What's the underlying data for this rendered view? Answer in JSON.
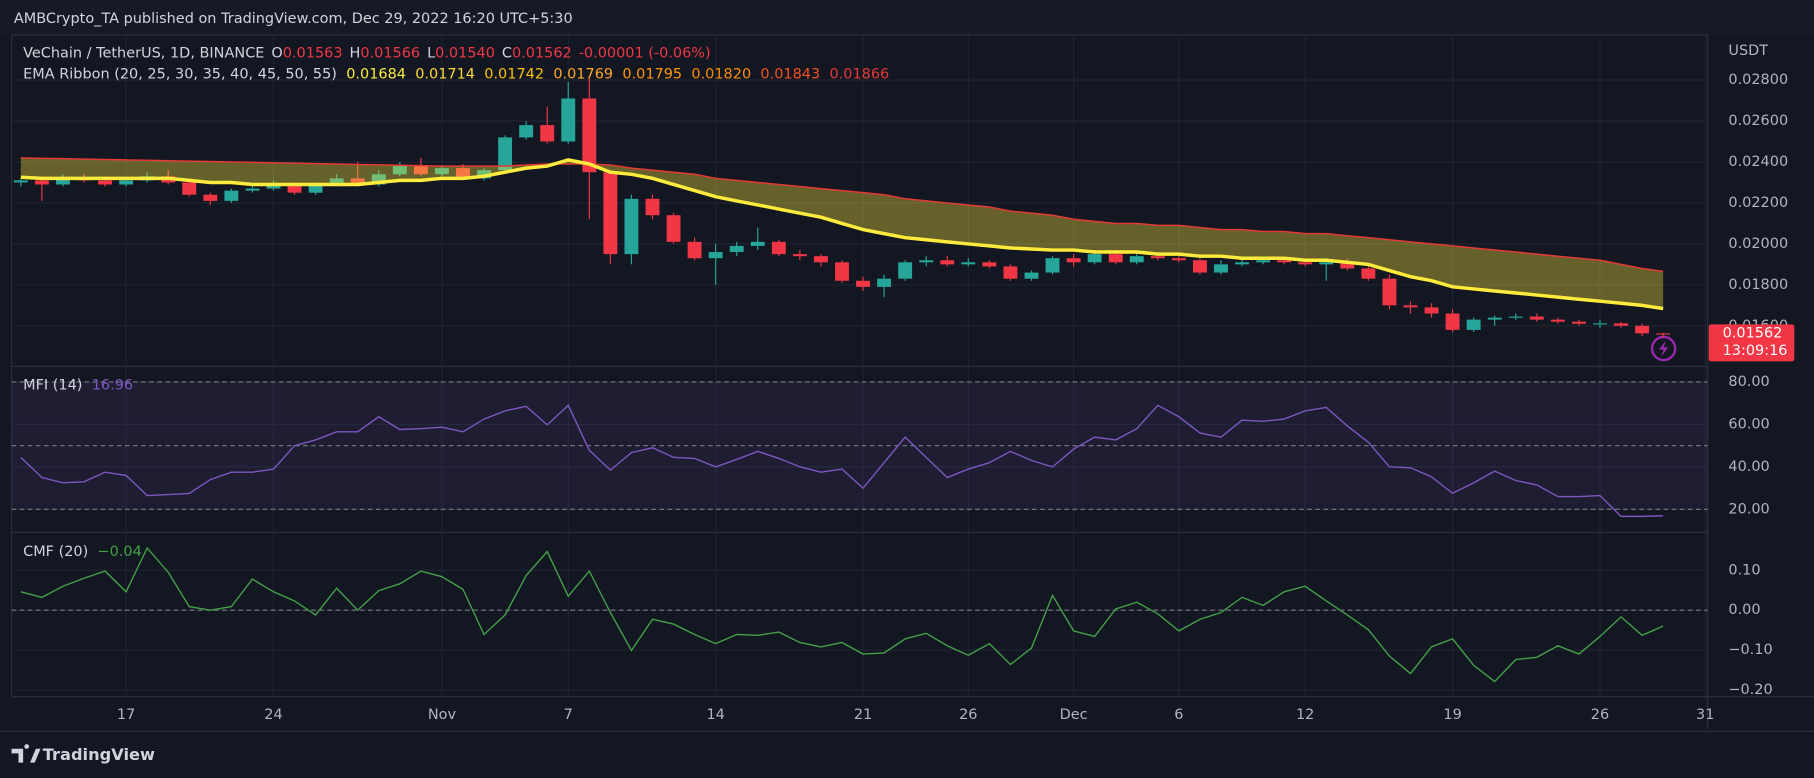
{
  "header": {
    "title": "AMBCrypto_TA published on TradingView.com, Dec 29, 2022 16:20 UTC+5:30"
  },
  "footer": {
    "brand": "TradingView"
  },
  "chart_data": [
    {
      "type": "candlestick",
      "ylabel": "USDT",
      "legend": {
        "title": "VeChain / TetherUS, 1D, BINANCE",
        "items": [
          {
            "key": "O",
            "value": "0.01563"
          },
          {
            "key": "H",
            "value": "0.01566"
          },
          {
            "key": "L",
            "value": "0.01540"
          },
          {
            "key": "C",
            "value": "0.01562"
          }
        ],
        "change": "-0.00001 (-0.06%)"
      },
      "last_price_label": "0.01562",
      "countdown": "13:09:16",
      "up_color": "#26a69a",
      "down_color": "#f23645",
      "grid": true,
      "categories": [
        null,
        null,
        null,
        null,
        null,
        "17",
        null,
        null,
        null,
        null,
        null,
        null,
        "24",
        null,
        null,
        null,
        null,
        null,
        null,
        null,
        "Nov",
        null,
        null,
        null,
        null,
        null,
        "7",
        null,
        null,
        null,
        null,
        null,
        null,
        "14",
        null,
        null,
        null,
        null,
        null,
        null,
        "21",
        null,
        null,
        null,
        null,
        "26",
        null,
        null,
        null,
        null,
        "Dec",
        null,
        null,
        null,
        null,
        "6",
        null,
        null,
        null,
        null,
        null,
        "12",
        null,
        null,
        null,
        null,
        null,
        null,
        "19",
        null,
        null,
        null,
        null,
        null,
        null,
        "26",
        null,
        null,
        null,
        null,
        "31"
      ],
      "open": [
        0.023,
        0.0231,
        0.0229,
        0.0232,
        0.0231,
        0.0229,
        0.0231,
        0.0233,
        0.023,
        0.0224,
        0.0221,
        0.0226,
        0.0227,
        0.0229,
        0.0225,
        0.0229,
        0.0232,
        0.0229,
        0.0234,
        0.0238,
        0.0234,
        0.0237,
        0.0232,
        0.0236,
        0.0252,
        0.0258,
        0.025,
        0.0271,
        0.0235,
        0.0195,
        0.0222,
        0.0214,
        0.0201,
        0.0193,
        0.0196,
        0.0199,
        0.0201,
        0.0195,
        0.0194,
        0.0191,
        0.0182,
        0.0179,
        0.0183,
        0.0191,
        0.0192,
        0.019,
        0.0191,
        0.0189,
        0.0183,
        0.0186,
        0.0193,
        0.0191,
        0.0195,
        0.0191,
        0.0194,
        0.0193,
        0.0192,
        0.0186,
        0.019,
        0.0191,
        0.0192,
        0.0191,
        0.019,
        0.0191,
        0.0188,
        0.0183,
        0.017,
        0.0169,
        0.0166,
        0.0158,
        0.0163,
        0.0164,
        0.01645,
        0.0163,
        0.0162,
        0.0161,
        0.01612,
        0.016,
        0.01563,
        null,
        null
      ],
      "high": [
        0.0232,
        0.0233,
        0.0234,
        0.0234,
        0.0232,
        0.0232,
        0.0235,
        0.0236,
        0.0231,
        0.0225,
        0.0227,
        0.0229,
        0.0231,
        0.023,
        0.023,
        0.0234,
        0.024,
        0.0236,
        0.024,
        0.0242,
        0.0238,
        0.0239,
        0.0237,
        0.0253,
        0.026,
        0.0267,
        0.0279,
        0.0282,
        0.0236,
        0.0224,
        0.0224,
        0.0215,
        0.0203,
        0.02,
        0.0201,
        0.0208,
        0.0202,
        0.0197,
        0.0195,
        0.0192,
        0.0184,
        0.0185,
        0.0192,
        0.0194,
        0.0194,
        0.0193,
        0.0192,
        0.019,
        0.0187,
        0.0194,
        0.0195,
        0.0197,
        0.0196,
        0.0196,
        0.0195,
        0.0194,
        0.0193,
        0.0192,
        0.0193,
        0.0193,
        0.0193,
        0.0192,
        0.0193,
        0.0193,
        0.0189,
        0.0185,
        0.0172,
        0.0171,
        0.0168,
        0.0164,
        0.0165,
        0.0166,
        0.0166,
        0.0164,
        0.0163,
        0.0163,
        0.0162,
        0.0161,
        0.01566,
        null,
        null
      ],
      "low": [
        0.0228,
        0.0221,
        0.0228,
        0.023,
        0.0228,
        0.0228,
        0.023,
        0.0229,
        0.0223,
        0.0219,
        0.022,
        0.0225,
        0.0226,
        0.0224,
        0.0224,
        0.0228,
        0.0228,
        0.0228,
        0.0233,
        0.0233,
        0.0233,
        0.0231,
        0.0231,
        0.0235,
        0.0251,
        0.0249,
        0.0249,
        0.0212,
        0.019,
        0.019,
        0.0212,
        0.02,
        0.0192,
        0.018,
        0.0194,
        0.0197,
        0.0194,
        0.0192,
        0.0189,
        0.0181,
        0.0177,
        0.0174,
        0.0182,
        0.0189,
        0.0189,
        0.0189,
        0.0188,
        0.0182,
        0.0182,
        0.0185,
        0.0189,
        0.019,
        0.019,
        0.019,
        0.0192,
        0.0191,
        0.0185,
        0.0185,
        0.0189,
        0.019,
        0.019,
        0.0189,
        0.0182,
        0.0187,
        0.0182,
        0.0168,
        0.0166,
        0.0164,
        0.0157,
        0.0157,
        0.016,
        0.0163,
        0.0162,
        0.0161,
        0.016,
        0.0159,
        0.0159,
        0.0155,
        0.0154,
        null,
        null
      ],
      "close": [
        0.0231,
        0.0229,
        0.0232,
        0.0231,
        0.0229,
        0.0231,
        0.0233,
        0.023,
        0.0224,
        0.0221,
        0.0226,
        0.0227,
        0.0229,
        0.0225,
        0.0229,
        0.0232,
        0.0229,
        0.0234,
        0.0238,
        0.0234,
        0.0237,
        0.0232,
        0.0236,
        0.0252,
        0.0258,
        0.025,
        0.0271,
        0.0235,
        0.0195,
        0.0222,
        0.0214,
        0.0201,
        0.0193,
        0.0196,
        0.0199,
        0.0201,
        0.0195,
        0.0194,
        0.0191,
        0.0182,
        0.0179,
        0.0183,
        0.0191,
        0.0192,
        0.019,
        0.0191,
        0.0189,
        0.0183,
        0.0186,
        0.0193,
        0.0191,
        0.0195,
        0.0191,
        0.0194,
        0.0193,
        0.0192,
        0.0186,
        0.019,
        0.0191,
        0.0192,
        0.0191,
        0.019,
        0.0191,
        0.0188,
        0.0183,
        0.017,
        0.0169,
        0.0166,
        0.0158,
        0.0163,
        0.0164,
        0.01645,
        0.0163,
        0.0162,
        0.0161,
        0.01612,
        0.016,
        0.01563,
        0.01562,
        null,
        null
      ],
      "ribbon": {
        "name": "EMA Ribbon (20, 25, 30, 35, 40, 45, 50, 55)",
        "last_values": [
          "0.01684",
          "0.01714",
          "0.01742",
          "0.01769",
          "0.01795",
          "0.01820",
          "0.01843",
          "0.01866"
        ],
        "colors": [
          "#ffeb3b",
          "#fdd835",
          "#ffc107",
          "#ffa726",
          "#ff9800",
          "#fb8c00",
          "#f4511e",
          "#e53935"
        ],
        "fast": [
          0.02325,
          0.0232,
          0.0232,
          0.0232,
          0.0232,
          0.0232,
          0.0232,
          0.0232,
          0.0231,
          0.023,
          0.023,
          0.0229,
          0.0229,
          0.0229,
          0.0229,
          0.0229,
          0.0229,
          0.023,
          0.0231,
          0.0231,
          0.0232,
          0.0232,
          0.0233,
          0.0235,
          0.0237,
          0.0238,
          0.0241,
          0.0239,
          0.0235,
          0.0234,
          0.0232,
          0.0229,
          0.0226,
          0.0223,
          0.0221,
          0.0219,
          0.0217,
          0.0215,
          0.0213,
          0.021,
          0.0207,
          0.0205,
          0.0203,
          0.0202,
          0.0201,
          0.02,
          0.0199,
          0.0198,
          0.01975,
          0.0197,
          0.0197,
          0.0196,
          0.0196,
          0.0196,
          0.0195,
          0.0195,
          0.0194,
          0.0194,
          0.0193,
          0.0193,
          0.0193,
          0.0192,
          0.0192,
          0.0191,
          0.019,
          0.0187,
          0.0184,
          0.0182,
          0.0179,
          0.0178,
          0.0177,
          0.0176,
          0.0175,
          0.0174,
          0.0173,
          0.0172,
          0.0171,
          0.017,
          0.01684,
          null,
          null
        ],
        "slow": [
          0.0242,
          0.02418,
          0.02416,
          0.02414,
          0.02412,
          0.0241,
          0.02408,
          0.02406,
          0.02404,
          0.02402,
          0.024,
          0.02398,
          0.02396,
          0.02394,
          0.02392,
          0.0239,
          0.02388,
          0.02386,
          0.02384,
          0.02382,
          0.0238,
          0.0238,
          0.0238,
          0.0238,
          0.02385,
          0.0239,
          0.0239,
          0.0239,
          0.02385,
          0.0237,
          0.0236,
          0.0235,
          0.0234,
          0.0232,
          0.0231,
          0.023,
          0.0229,
          0.0228,
          0.0227,
          0.0226,
          0.0225,
          0.0224,
          0.0222,
          0.0221,
          0.022,
          0.0219,
          0.0218,
          0.0216,
          0.0215,
          0.0214,
          0.0212,
          0.0211,
          0.021,
          0.021,
          0.0209,
          0.0209,
          0.0208,
          0.0207,
          0.0207,
          0.0206,
          0.0206,
          0.0205,
          0.0205,
          0.0204,
          0.0203,
          0.0202,
          0.0201,
          0.02,
          0.0199,
          0.0198,
          0.0197,
          0.0196,
          0.0195,
          0.0194,
          0.0193,
          0.0192,
          0.019,
          0.0188,
          0.01866,
          null,
          null
        ]
      },
      "ylim": [
        0.0141,
        0.0302
      ],
      "yticks": [
        {
          "value": 0.016,
          "label": "0.01600"
        },
        {
          "value": 0.018,
          "label": "0.01800"
        },
        {
          "value": 0.02,
          "label": "0.02000"
        },
        {
          "value": 0.022,
          "label": "0.02200"
        },
        {
          "value": 0.024,
          "label": "0.02400"
        },
        {
          "value": 0.026,
          "label": "0.02600"
        },
        {
          "value": 0.028,
          "label": "0.02800"
        }
      ]
    },
    {
      "type": "line",
      "legend": {
        "name": "MFI (14)",
        "value": "16.96"
      },
      "color": "#7e57c2",
      "grid": true,
      "levels": [
        80,
        50,
        20
      ],
      "band": true,
      "band_color": "rgba(126,87,194,0.10)",
      "values": [
        44.5,
        35,
        32.5,
        33,
        37.5,
        36,
        26.5,
        27,
        27.5,
        34,
        37.5,
        37.5,
        39,
        50,
        52.7,
        56.5,
        56.5,
        63.6,
        57.6,
        58,
        58.7,
        56.5,
        62.5,
        66.4,
        68.5,
        59.8,
        69,
        47.8,
        38.5,
        46.7,
        49,
        44.5,
        44,
        40,
        43.5,
        47.3,
        44,
        40,
        37.5,
        39,
        30,
        42,
        54,
        44.5,
        35,
        39,
        42,
        47.3,
        43,
        40,
        48.4,
        54,
        52.7,
        58,
        69,
        63.6,
        56,
        54,
        62,
        61.5,
        62.5,
        66.4,
        68,
        59.3,
        51.6,
        40,
        39.6,
        35.3,
        27.6,
        32.5,
        38,
        33.6,
        31.5,
        26,
        26,
        26.5,
        16.7,
        16.7,
        16.96,
        null,
        null
      ],
      "ylim": [
        10.2,
        86.5
      ],
      "yticks": [
        {
          "value": 20,
          "label": "20.00"
        },
        {
          "value": 40,
          "label": "40.00"
        },
        {
          "value": 60,
          "label": "60.00"
        },
        {
          "value": 80,
          "label": "80.00"
        }
      ]
    },
    {
      "type": "line",
      "legend": {
        "name": "CMF (20)",
        "value": "−0.04"
      },
      "color": "#43a047",
      "grid": true,
      "levels": [
        0
      ],
      "band": false,
      "values": [
        0.046,
        0.032,
        0.06,
        0.08,
        0.098,
        0.046,
        0.156,
        0.095,
        0.009,
        0,
        0.009,
        0.078,
        0.046,
        0.023,
        -0.012,
        0.055,
        0,
        0.049,
        0.066,
        0.098,
        0.084,
        0.052,
        -0.061,
        -0.012,
        0.087,
        0.147,
        0.035,
        0.098,
        -0.006,
        -0.101,
        -0.023,
        -0.035,
        -0.061,
        -0.084,
        -0.061,
        -0.063,
        -0.055,
        -0.081,
        -0.092,
        -0.081,
        -0.11,
        -0.107,
        -0.072,
        -0.058,
        -0.089,
        -0.113,
        -0.084,
        -0.136,
        -0.095,
        0.037,
        -0.052,
        -0.066,
        0.003,
        0.02,
        -0.009,
        -0.052,
        -0.023,
        -0.006,
        0.032,
        0.012,
        0.046,
        0.06,
        0.023,
        -0.012,
        -0.049,
        -0.115,
        -0.159,
        -0.092,
        -0.072,
        -0.138,
        -0.179,
        -0.124,
        -0.118,
        -0.089,
        -0.11,
        -0.066,
        -0.017,
        -0.063,
        -0.04,
        null,
        null
      ],
      "ylim": [
        -0.217,
        0.189
      ],
      "yticks": [
        {
          "value": -0.2,
          "label": "−0.20"
        },
        {
          "value": -0.1,
          "label": "−0.10"
        },
        {
          "value": 0,
          "label": "0.00"
        },
        {
          "value": 0.1,
          "label": "0.10"
        }
      ]
    }
  ]
}
